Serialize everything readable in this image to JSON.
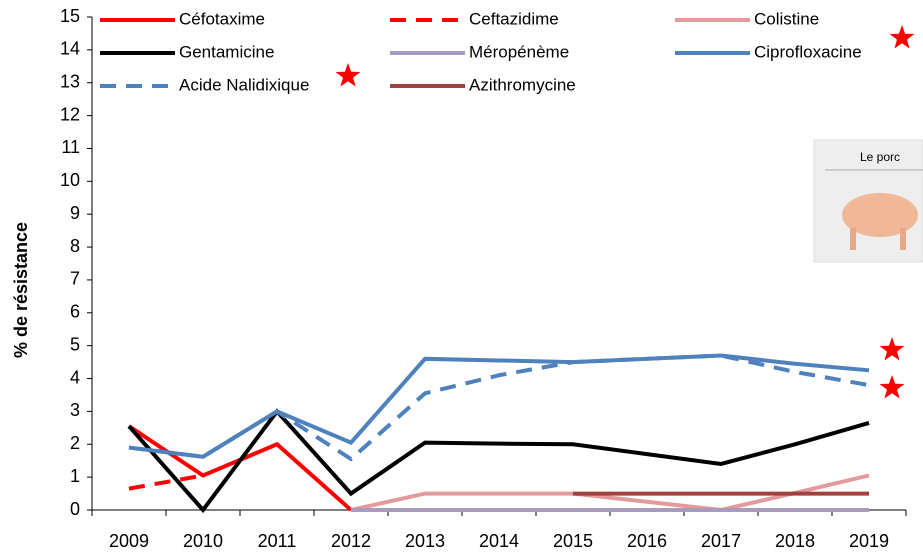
{
  "chart_data": {
    "type": "line",
    "ylabel": "% de résistance",
    "image_label": "Le porc",
    "categories": [
      "2009",
      "2010",
      "2011",
      "2012",
      "2013",
      "2014",
      "2015",
      "2016",
      "2017",
      "2018",
      "2019"
    ],
    "ylim": [
      0,
      15
    ],
    "yticks": [
      0,
      1,
      2,
      3,
      4,
      5,
      6,
      7,
      8,
      9,
      10,
      11,
      12,
      13,
      14,
      15
    ],
    "series": [
      {
        "name": "Céfotaxime",
        "color": "#ff0000",
        "dash": false,
        "values": [
          2.55,
          1.05,
          2.0,
          0,
          null,
          null,
          null,
          null,
          null,
          null,
          null
        ]
      },
      {
        "name": "Ceftazidime",
        "color": "#ff0000",
        "dash": true,
        "values": [
          0.65,
          1.05,
          null,
          null,
          null,
          null,
          null,
          null,
          null,
          null,
          null
        ]
      },
      {
        "name": "Colistine",
        "color": "#e39a9a",
        "dash": false,
        "values": [
          null,
          null,
          null,
          0,
          0.5,
          0.5,
          0.5,
          0.25,
          0,
          0.52,
          1.05
        ]
      },
      {
        "name": "Gentamicine",
        "color": "#000000",
        "dash": false,
        "values": [
          2.55,
          0,
          3.0,
          0.5,
          2.05,
          2.02,
          2.0,
          1.7,
          1.4,
          2.0,
          2.65
        ]
      },
      {
        "name": "Méropénème",
        "color": "#a99bbd",
        "dash": false,
        "values": [
          null,
          null,
          null,
          0,
          0,
          0,
          0,
          0,
          0,
          0,
          0
        ]
      },
      {
        "name": "Ciprofloxacine",
        "color": "#4f81bd",
        "dash": false,
        "values": [
          1.9,
          1.62,
          3.0,
          2.05,
          4.6,
          4.55,
          4.5,
          4.6,
          4.7,
          4.45,
          4.25
        ]
      },
      {
        "name": "Acide Nalidixique",
        "color": "#4f81bd",
        "dash": true,
        "values": [
          1.9,
          1.62,
          3.0,
          1.55,
          3.55,
          4.1,
          4.5,
          4.6,
          4.7,
          4.2,
          3.8
        ]
      },
      {
        "name": "Azithromycine",
        "color": "#a0413f",
        "dash": false,
        "values": [
          null,
          null,
          null,
          null,
          null,
          null,
          0.5,
          0.5,
          0.5,
          0.5,
          0.5
        ]
      }
    ]
  }
}
